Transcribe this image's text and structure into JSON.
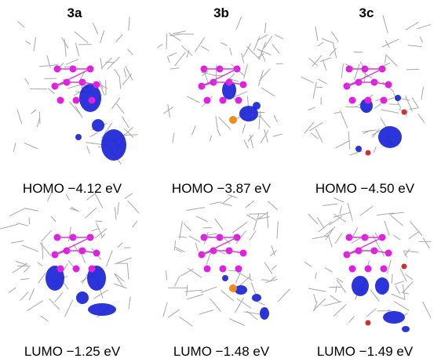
{
  "figure": {
    "columns": [
      {
        "label": "3a",
        "homo": "HOMO −4.12 eV",
        "lumo": "LUMO −1.25 eV"
      },
      {
        "label": "3b",
        "homo": "HOMO −3.87 eV",
        "lumo": "LUMO −1.48 eV"
      },
      {
        "label": "3c",
        "homo": "HOMO −4.50 eV",
        "lumo": "LUMO −1.49 eV"
      }
    ]
  }
}
